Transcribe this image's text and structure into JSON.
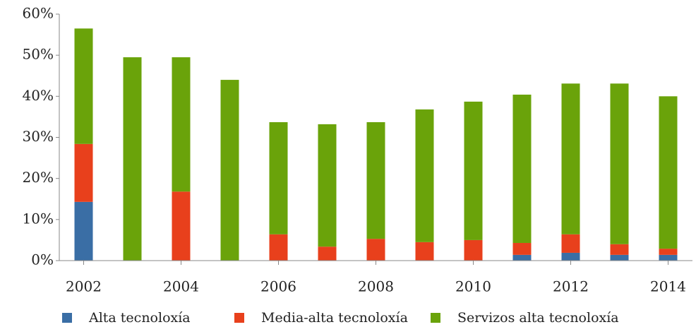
{
  "chart_data": {
    "type": "stacked_bar",
    "categories": [
      "2002",
      null,
      "2004",
      null,
      "2006",
      null,
      "2008",
      null,
      "2010",
      null,
      "2012",
      null,
      "2014"
    ],
    "series": [
      {
        "name": "Alta tecnoloxía",
        "color": "#3a6ea5",
        "values": [
          14.3,
          0,
          0,
          0,
          0,
          0,
          0,
          0,
          0,
          1.4,
          1.9,
          1.4,
          1.4
        ]
      },
      {
        "name": "Media-alta tecnoloxía",
        "color": "#e8401c",
        "values": [
          14.1,
          0,
          16.8,
          0,
          6.4,
          3.4,
          5.3,
          4.5,
          5.0,
          2.9,
          4.5,
          2.6,
          1.5
        ]
      },
      {
        "name": "Servizos alta tecnoloxía",
        "color": "#6aa30a",
        "values": [
          28.1,
          49.5,
          32.7,
          44.0,
          27.3,
          29.8,
          28.4,
          32.3,
          33.7,
          36.1,
          36.7,
          39.1,
          37.1
        ]
      }
    ],
    "ylim": [
      0,
      60
    ],
    "yticks": [
      {
        "value": 0,
        "label": "0%"
      },
      {
        "value": 10,
        "label": "10%"
      },
      {
        "value": 20,
        "label": "20%"
      },
      {
        "value": 30,
        "label": "30%"
      },
      {
        "value": 40,
        "label": "40%"
      },
      {
        "value": 50,
        "label": "50%"
      },
      {
        "value": 60,
        "label": "60%"
      }
    ],
    "legend": "bottom"
  }
}
